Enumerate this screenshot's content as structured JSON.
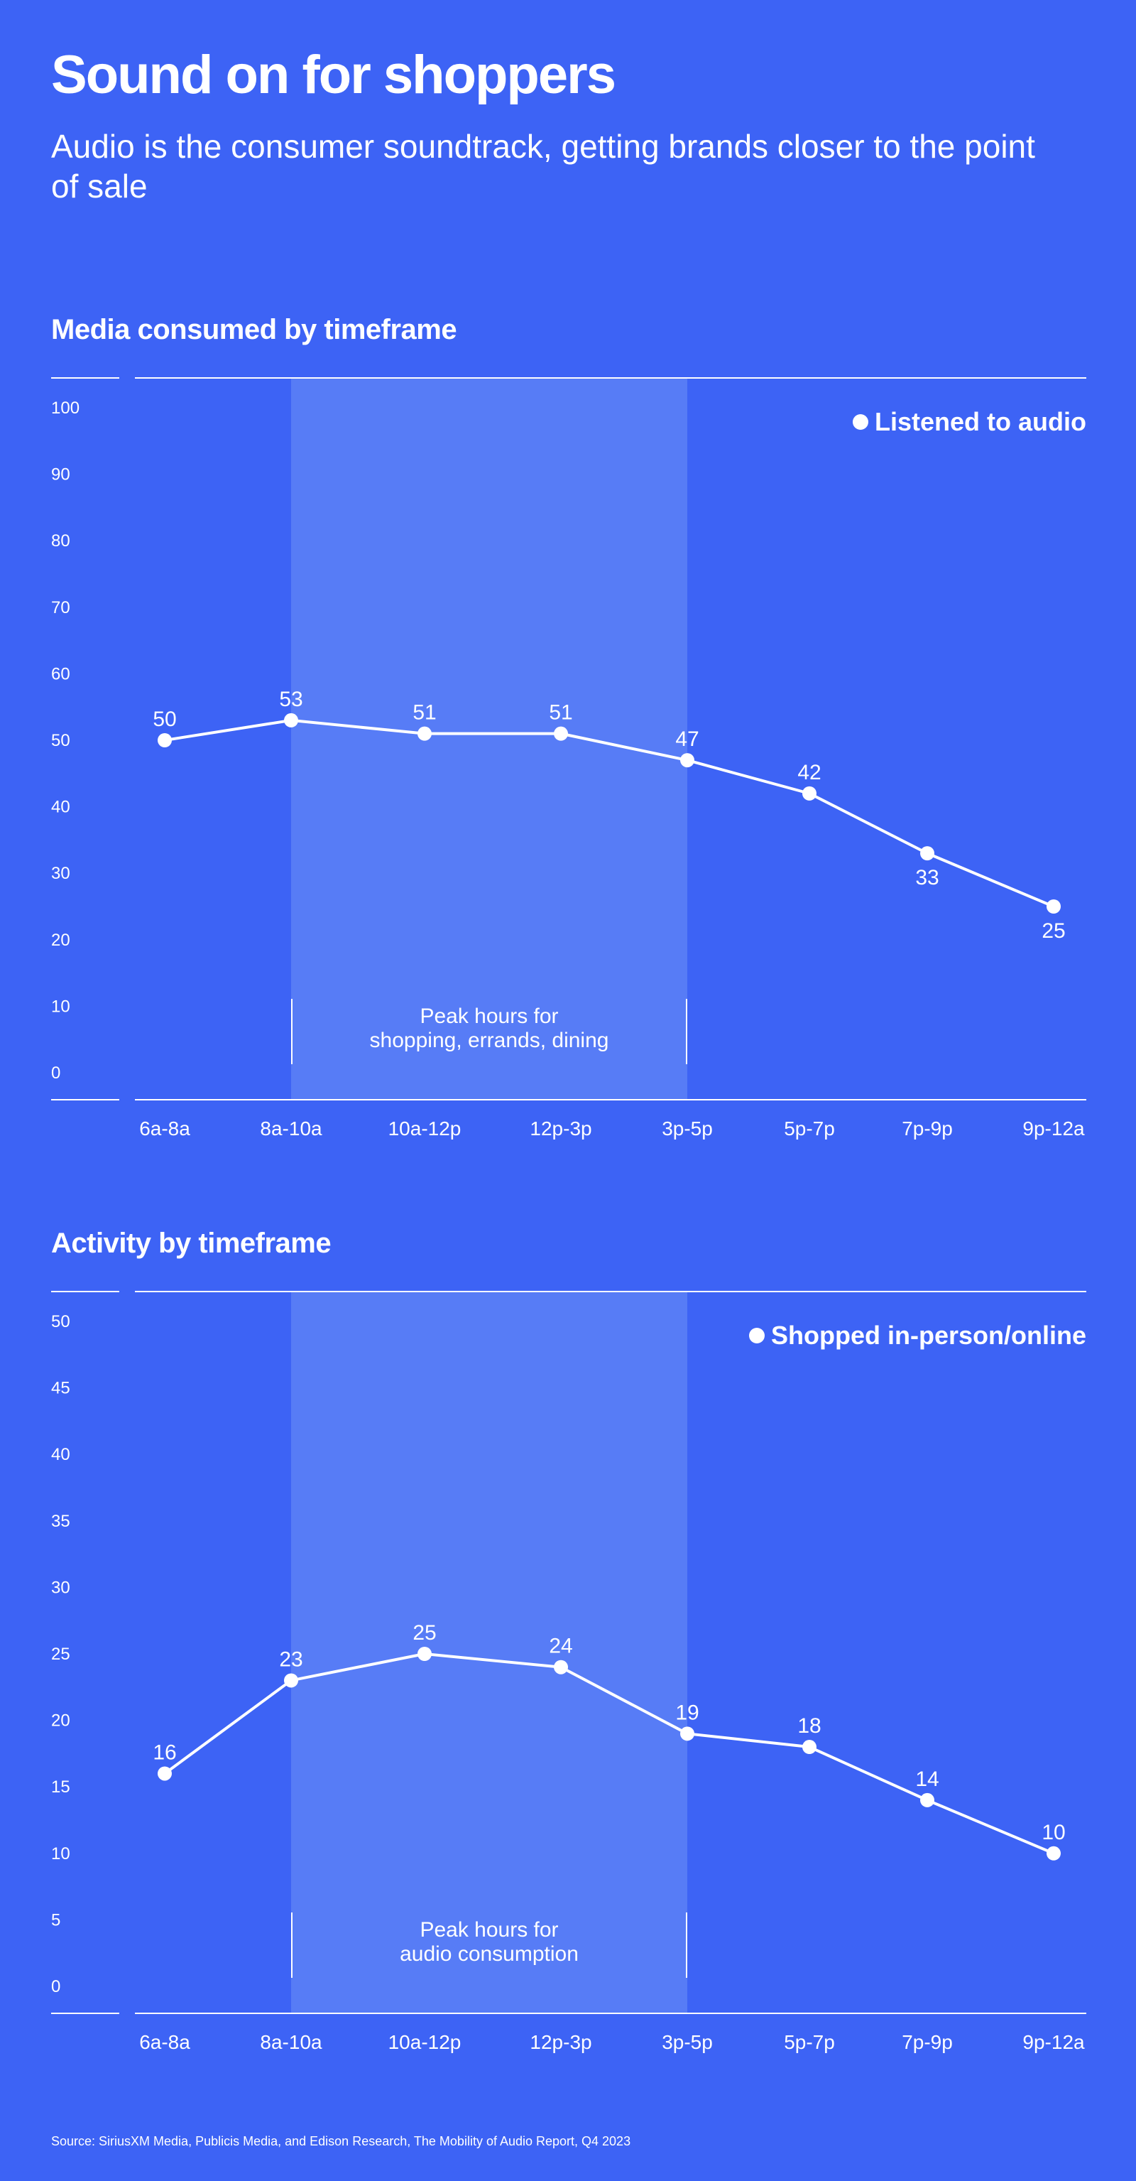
{
  "header": {
    "title": "Sound on for shoppers",
    "subtitle": "Audio is the consumer soundtrack, getting brands closer to the point of sale"
  },
  "colors": {
    "background": "#3d63f5",
    "highlight": "#577cf6",
    "foreground": "#ffffff"
  },
  "chart_data": [
    {
      "type": "line",
      "title": "Media consumed by timeframe",
      "categories": [
        "6a-8a",
        "8a-10a",
        "10a-12p",
        "12p-3p",
        "3p-5p",
        "5p-7p",
        "7p-9p",
        "9p-12a"
      ],
      "series": [
        {
          "name": "Listened to audio",
          "values": [
            50,
            53,
            51,
            51,
            47,
            42,
            33,
            25
          ]
        }
      ],
      "ylim": [
        0,
        100
      ],
      "yticks": [
        "0",
        "10",
        "20",
        "30",
        "40",
        "50",
        "60",
        "70",
        "80",
        "90",
        "100"
      ],
      "legend_position": "top-right",
      "highlight_range": [
        "8a-10a",
        "3p-5p"
      ],
      "highlight_label_lines": [
        "Peak hours for",
        "shopping, errands, dining"
      ]
    },
    {
      "type": "line",
      "title": "Activity by timeframe",
      "categories": [
        "6a-8a",
        "8a-10a",
        "10a-12p",
        "12p-3p",
        "3p-5p",
        "5p-7p",
        "7p-9p",
        "9p-12a"
      ],
      "series": [
        {
          "name": "Shopped in-person/online",
          "values": [
            16,
            23,
            25,
            24,
            19,
            18,
            14,
            10
          ]
        }
      ],
      "ylim": [
        0,
        50
      ],
      "yticks": [
        "0",
        "5",
        "10",
        "15",
        "20",
        "25",
        "30",
        "35",
        "40",
        "45",
        "50"
      ],
      "legend_position": "top-right",
      "highlight_range": [
        "8a-10a",
        "3p-5p"
      ],
      "highlight_label_lines": [
        "Peak hours for",
        "audio consumption"
      ]
    }
  ],
  "footer": {
    "source": "Source: SiriusXM Media, Publicis Media, and Edison Research, The Mobility of Audio Report, Q4 2023"
  }
}
